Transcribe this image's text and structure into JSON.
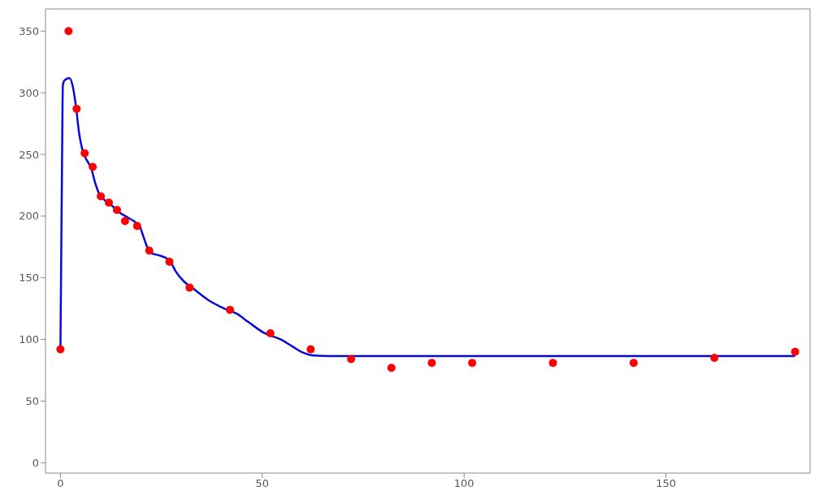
{
  "chart_data": {
    "type": "scatter",
    "series": [
      {
        "color": "#ff0000",
        "marker": "circle",
        "x": [
          0,
          2,
          4,
          6,
          8,
          10,
          12,
          14,
          16,
          19,
          22,
          27,
          32,
          42,
          52,
          62,
          72,
          82,
          92,
          102,
          122,
          142,
          162,
          182
        ],
        "values": [
          92,
          350,
          287,
          251,
          240,
          216,
          211,
          205,
          196,
          192,
          172,
          163,
          142,
          124,
          105,
          92,
          84,
          77,
          81,
          81,
          81,
          81,
          85,
          90
        ]
      },
      {
        "type": "line",
        "color": "#0a0ad8",
        "marker": "none",
        "line_style": "solid",
        "x": [
          0,
          0.4,
          0.6,
          1,
          2.2,
          3,
          3.8,
          4.6,
          5.6,
          6.6,
          7.6,
          8.6,
          9.6,
          10.6,
          12.6,
          14.6,
          16.6,
          18.6,
          19.6,
          20.6,
          21.6,
          22.6,
          24.6,
          26.6,
          27.6,
          28.6,
          30.6,
          32.6,
          36.6,
          40.6,
          43.6,
          46.6,
          50.6,
          54.6,
          57.6,
          59.6,
          62.6,
          66.6,
          100,
          140,
          182
        ],
        "values": [
          92,
          245,
          306,
          310,
          312,
          306,
          290,
          268,
          252,
          245,
          239,
          227,
          218,
          214,
          209,
          203,
          199,
          195,
          192,
          183,
          174,
          170,
          168,
          165,
          161,
          155,
          147,
          142,
          132,
          125,
          121,
          114,
          105,
          100,
          94,
          90,
          87,
          86.5,
          86.5,
          86.5,
          86.5
        ]
      }
    ],
    "xlim": [
      -3.7,
      185.7
    ],
    "xticks": [
      0,
      50,
      100,
      150
    ],
    "ylim": [
      -8.4,
      368
    ],
    "yticks": [
      0,
      50,
      100,
      150,
      200,
      250,
      300,
      350
    ],
    "grid": false,
    "legend": false
  }
}
